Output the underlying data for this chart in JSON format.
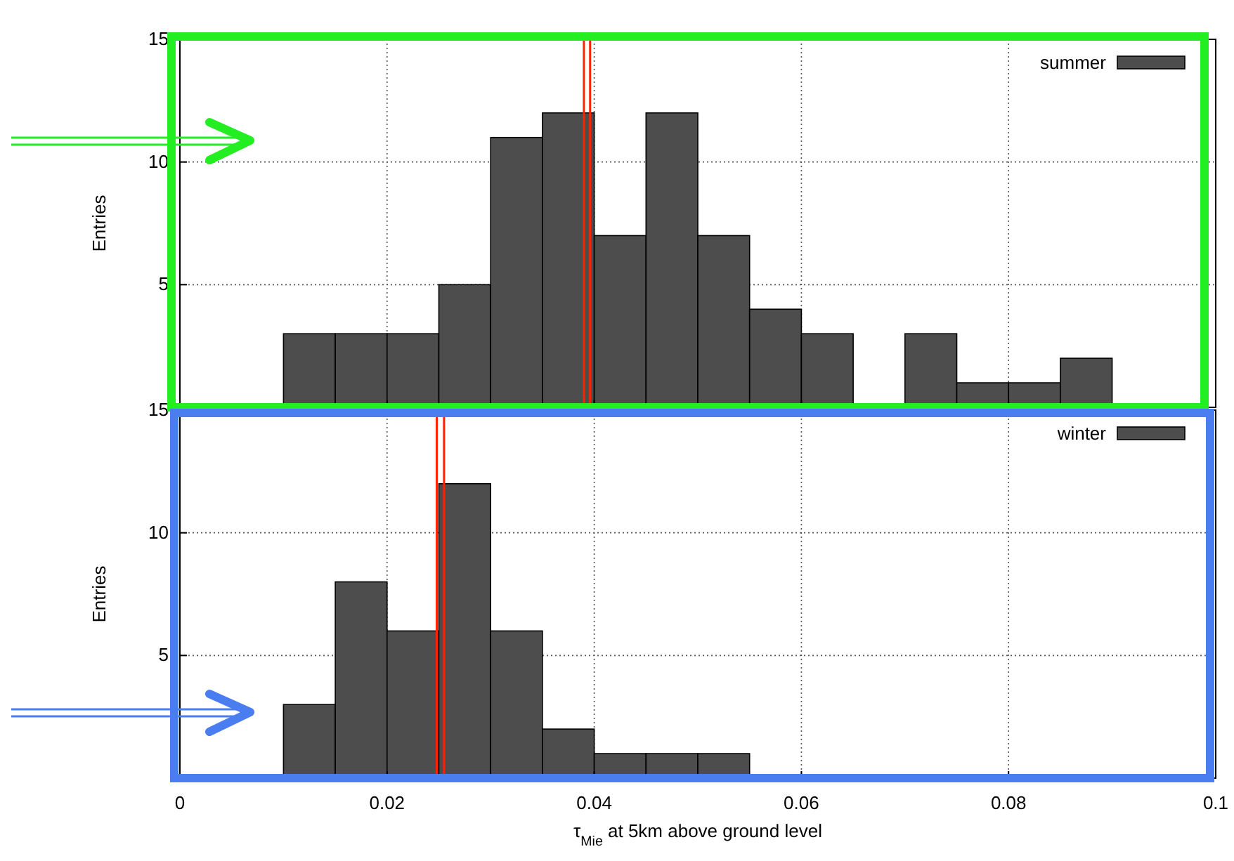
{
  "chart_data": [
    {
      "type": "histogram",
      "ylabel": "Entries",
      "bins": [
        0.01,
        0.015,
        0.02,
        0.025,
        0.03,
        0.035,
        0.04,
        0.045,
        0.05,
        0.055,
        0.06,
        0.065,
        0.07,
        0.075,
        0.08,
        0.085,
        0.09
      ],
      "series": [
        {
          "name": "summer",
          "color": "#4d4d4d",
          "values": [
            3,
            3,
            3,
            5,
            11,
            12,
            7,
            12,
            7,
            4,
            3,
            0,
            3,
            1,
            1,
            2
          ]
        }
      ],
      "xlim": [
        0,
        0.1
      ],
      "xticks": [
        0,
        0.02,
        0.04,
        0.06,
        0.08,
        0.1
      ],
      "ylim": [
        0,
        15
      ],
      "yticks": [
        5,
        10,
        15
      ],
      "tick_labels": "y",
      "grid": true,
      "legend": "top right",
      "ref_lines": [
        {
          "axis": "x",
          "value": 0.039,
          "color": "#ff2200"
        },
        {
          "axis": "x",
          "value": 0.0396,
          "color": "#ff2200"
        }
      ]
    },
    {
      "type": "histogram",
      "ylabel": "Entries",
      "xlabel": "τ$_{Mie}$ at 5km above ground level",
      "bins": [
        0.01,
        0.015,
        0.02,
        0.025,
        0.03,
        0.035,
        0.04,
        0.045,
        0.05,
        0.055
      ],
      "series": [
        {
          "name": "winter",
          "color": "#4d4d4d",
          "values": [
            3,
            8,
            6,
            12,
            6,
            2,
            1,
            1,
            1
          ]
        }
      ],
      "xlim": [
        0,
        0.1
      ],
      "xticks": [
        0,
        0.02,
        0.04,
        0.06,
        0.08,
        0.1
      ],
      "ylim": [
        0,
        15
      ],
      "yticks": [
        5,
        10,
        15
      ],
      "grid": true,
      "legend": "top right",
      "ref_lines": [
        {
          "axis": "x",
          "value": 0.0248,
          "color": "#ff2200"
        },
        {
          "axis": "x",
          "value": 0.0255,
          "color": "#ff2200"
        }
      ]
    }
  ]
}
